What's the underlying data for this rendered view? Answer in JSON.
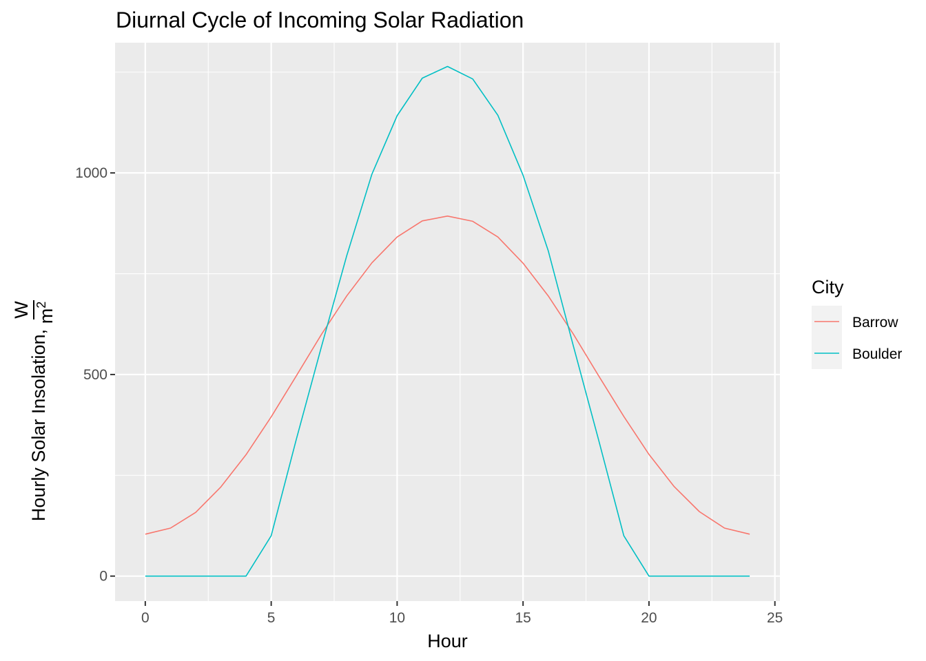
{
  "chart_data": {
    "type": "line",
    "title": "Diurnal Cycle of Incoming Solar Radiation",
    "xlabel": "Hour",
    "ylabel": {
      "main": "Hourly Solar Insolation,",
      "numerator": "W",
      "denominator": "m",
      "exponent": "2"
    },
    "xlim": [
      -1.2,
      25.2
    ],
    "ylim": [
      -62,
      1323
    ],
    "x_ticks": [
      0,
      5,
      10,
      15,
      20,
      25
    ],
    "x_tick_labels": [
      "0",
      "5",
      "10",
      "15",
      "20",
      "25"
    ],
    "y_ticks": [
      0,
      500,
      1000
    ],
    "y_tick_labels": [
      "0",
      "500",
      "1000"
    ],
    "grid": true,
    "legend": {
      "title": "City",
      "position": "right"
    },
    "x": [
      0,
      1,
      2,
      3,
      4,
      5,
      6,
      7,
      8,
      9,
      10,
      11,
      12,
      13,
      14,
      15,
      16,
      17,
      18,
      19,
      20,
      21,
      22,
      23,
      24
    ],
    "series": [
      {
        "name": "Barrow",
        "color": "#F8766D",
        "values": [
          104,
          119,
          158,
          221,
          301,
          395,
          497,
          600,
          695,
          777,
          841,
          881,
          893,
          880,
          841,
          776,
          695,
          600,
          497,
          396,
          302,
          222,
          160,
          119,
          104
        ]
      },
      {
        "name": "Boulder",
        "color": "#00BFC4",
        "values": [
          0,
          0,
          0,
          0,
          0,
          100,
          340,
          570,
          795,
          997,
          1142,
          1235,
          1264,
          1233,
          1143,
          994,
          807,
          570,
          338,
          100,
          0,
          0,
          0,
          0,
          0
        ]
      }
    ]
  }
}
